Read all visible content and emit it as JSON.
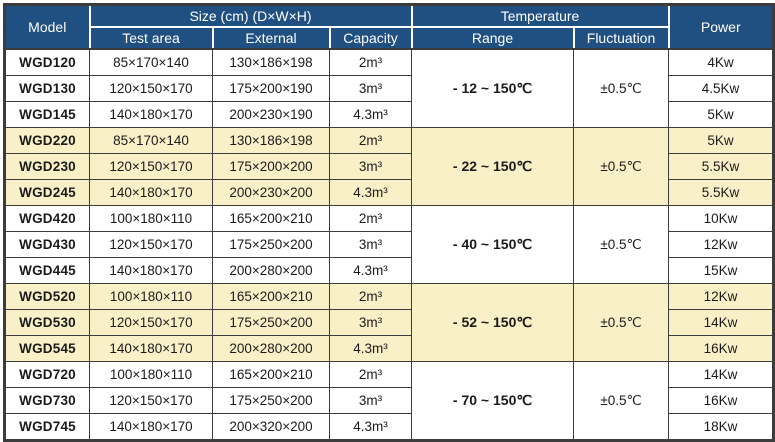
{
  "header": {
    "model": "Model",
    "size_group": "Size (cm) (D×W×H)",
    "test_area": "Test area",
    "external": "External",
    "capacity": "Capacity",
    "temperature_group": "Temperature",
    "range": "Range",
    "fluctuation": "Fluctuation",
    "power": "Power"
  },
  "groups": [
    {
      "highlight": false,
      "range": "- 12 ~ 150℃",
      "fluctuation": "±0.5℃",
      "rows": [
        {
          "model": "WGD120",
          "test_area": "85×170×140",
          "external": "130×186×198",
          "capacity": "2m³",
          "power": "4Kw"
        },
        {
          "model": "WGD130",
          "test_area": "120×150×170",
          "external": "175×200×190",
          "capacity": "3m³",
          "power": "4.5Kw"
        },
        {
          "model": "WGD145",
          "test_area": "140×180×170",
          "external": "200×230×190",
          "capacity": "4.3m³",
          "power": "5Kw"
        }
      ]
    },
    {
      "highlight": true,
      "range": "- 22 ~ 150℃",
      "fluctuation": "±0.5℃",
      "rows": [
        {
          "model": "WGD220",
          "test_area": "85×170×140",
          "external": "130×186×198",
          "capacity": "2m³",
          "power": "5Kw"
        },
        {
          "model": "WGD230",
          "test_area": "120×150×170",
          "external": "175×200×200",
          "capacity": "3m³",
          "power": "5.5Kw"
        },
        {
          "model": "WGD245",
          "test_area": "140×180×170",
          "external": "200×230×200",
          "capacity": "4.3m³",
          "power": "5.5Kw"
        }
      ]
    },
    {
      "highlight": false,
      "range": "- 40 ~ 150℃",
      "fluctuation": "±0.5℃",
      "rows": [
        {
          "model": "WGD420",
          "test_area": "100×180×110",
          "external": "165×200×210",
          "capacity": "2m³",
          "power": "10Kw"
        },
        {
          "model": "WGD430",
          "test_area": "120×150×170",
          "external": "175×250×200",
          "capacity": "3m³",
          "power": "12Kw"
        },
        {
          "model": "WGD445",
          "test_area": "140×180×170",
          "external": "200×280×200",
          "capacity": "4.3m³",
          "power": "15Kw"
        }
      ]
    },
    {
      "highlight": true,
      "range": "- 52 ~ 150℃",
      "fluctuation": "±0.5℃",
      "rows": [
        {
          "model": "WGD520",
          "test_area": "100×180×110",
          "external": "165×200×210",
          "capacity": "2m³",
          "power": "12Kw"
        },
        {
          "model": "WGD530",
          "test_area": "120×150×170",
          "external": "175×250×200",
          "capacity": "3m³",
          "power": "14Kw"
        },
        {
          "model": "WGD545",
          "test_area": "140×180×170",
          "external": "200×280×200",
          "capacity": "4.3m³",
          "power": "16Kw"
        }
      ]
    },
    {
      "highlight": false,
      "range": "- 70 ~ 150℃",
      "fluctuation": "±0.5℃",
      "rows": [
        {
          "model": "WGD720",
          "test_area": "100×180×110",
          "external": "165×200×210",
          "capacity": "2m³",
          "power": "14Kw"
        },
        {
          "model": "WGD730",
          "test_area": "120×150×170",
          "external": "175×250×200",
          "capacity": "3m³",
          "power": "16Kw"
        },
        {
          "model": "WGD745",
          "test_area": "140×180×170",
          "external": "200×320×200",
          "capacity": "4.3m³",
          "power": "18Kw"
        }
      ]
    }
  ],
  "colors": {
    "header_bg": "#204F81",
    "header_text": "#FFFFFF",
    "highlight_bg": "#FAF0C8",
    "row_bg": "#FFFFFF",
    "border_dark": "#3C3C3C",
    "text_dark": "#1A1A1A"
  }
}
